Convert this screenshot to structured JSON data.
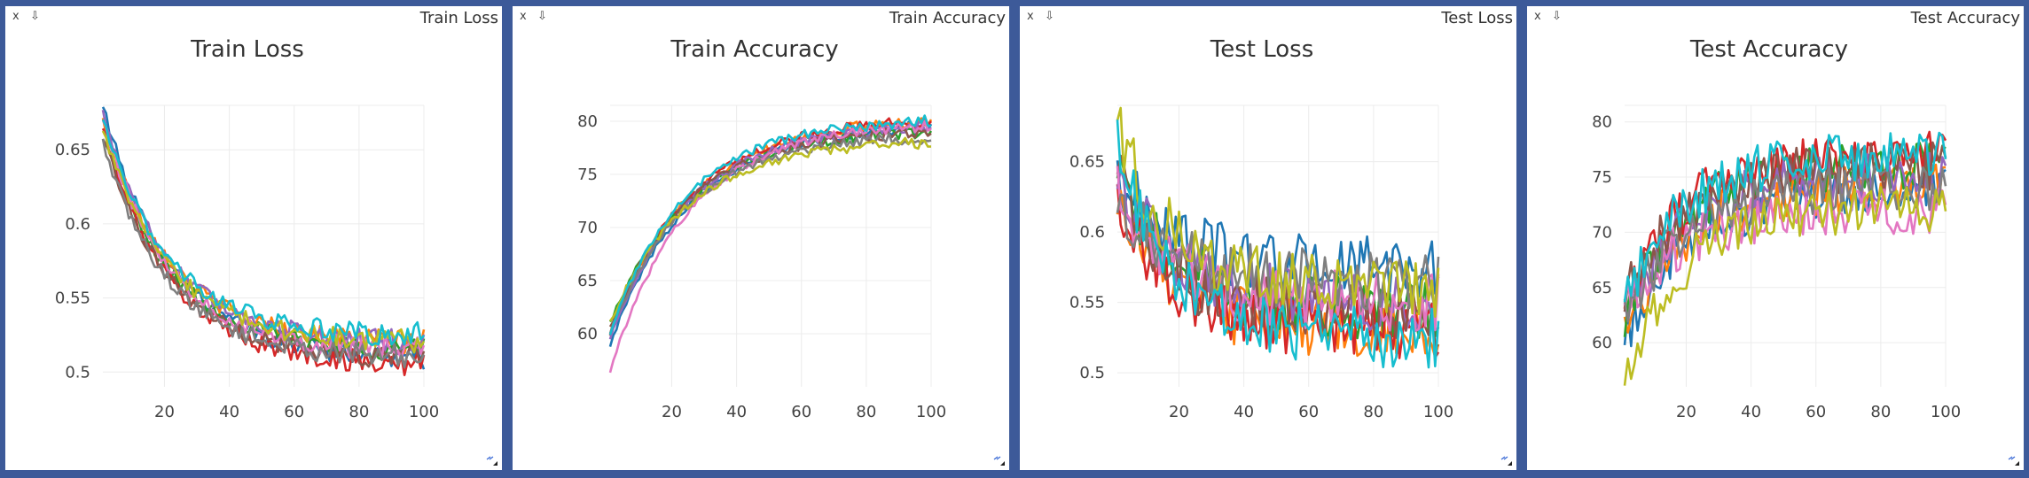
{
  "panes": [
    {
      "window_title": "Train Loss",
      "close_glyph": "x",
      "download_glyph": "⇩"
    },
    {
      "window_title": "Train Accuracy",
      "close_glyph": "x",
      "download_glyph": "⇩"
    },
    {
      "window_title": "Test Loss",
      "close_glyph": "x",
      "download_glyph": "⇩"
    },
    {
      "window_title": "Test Accuracy",
      "close_glyph": "x",
      "download_glyph": "⇩"
    }
  ],
  "colors": {
    "background": "#3d5a99",
    "series": [
      "#1f77b4",
      "#ff7f0e",
      "#2ca02c",
      "#d62728",
      "#9467bd",
      "#8c564b",
      "#e377c2",
      "#7f7f7f",
      "#bcbd22",
      "#17becf"
    ]
  },
  "chart_data": [
    {
      "type": "line",
      "title": "Train Loss",
      "x_range": [
        1,
        100
      ],
      "xticks": [
        "20",
        "40",
        "60",
        "80",
        "100"
      ],
      "ylim": [
        0.49,
        0.68
      ],
      "yticks": [
        "0.5",
        "0.55",
        "0.6",
        "0.65"
      ],
      "grid": true,
      "series_count": 10,
      "start": 0.67,
      "end": 0.515,
      "rate": 0.045,
      "noise": 0.009,
      "starts": [
        0.68,
        0.67,
        0.66,
        0.665,
        0.675,
        0.66,
        0.67,
        0.655,
        0.665,
        0.67
      ],
      "ends": [
        0.51,
        0.52,
        0.515,
        0.505,
        0.52,
        0.51,
        0.515,
        0.51,
        0.52,
        0.525
      ]
    },
    {
      "type": "line",
      "title": "Train Accuracy",
      "x_range": [
        1,
        100
      ],
      "xticks": [
        "20",
        "40",
        "60",
        "80",
        "100"
      ],
      "ylim": [
        55,
        81.5
      ],
      "yticks": [
        "60",
        "65",
        "70",
        "75",
        "80"
      ],
      "grid": true,
      "series_count": 10,
      "starts": [
        59,
        60,
        61,
        60,
        59.5,
        60.5,
        56.5,
        60,
        61,
        60
      ],
      "ends": [
        79.5,
        80,
        79,
        80,
        79.5,
        79,
        79.5,
        78.5,
        78,
        80
      ],
      "rate": 0.05,
      "noise": 0.6
    },
    {
      "type": "line",
      "title": "Test Loss",
      "x_range": [
        1,
        100
      ],
      "xticks": [
        "20",
        "40",
        "60",
        "80",
        "100"
      ],
      "ylim": [
        0.49,
        0.69
      ],
      "yticks": [
        "0.5",
        "0.55",
        "0.6",
        "0.65"
      ],
      "grid": true,
      "series_count": 10,
      "starts": [
        0.64,
        0.63,
        0.64,
        0.62,
        0.645,
        0.64,
        0.63,
        0.625,
        0.675,
        0.66
      ],
      "ends": [
        0.575,
        0.53,
        0.545,
        0.53,
        0.55,
        0.54,
        0.55,
        0.565,
        0.56,
        0.525
      ],
      "rate": 0.06,
      "noise": 0.022
    },
    {
      "type": "line",
      "title": "Test Accuracy",
      "x_range": [
        1,
        100
      ],
      "xticks": [
        "20",
        "40",
        "60",
        "80",
        "100"
      ],
      "ylim": [
        56,
        81.5
      ],
      "yticks": [
        "60",
        "65",
        "70",
        "75",
        "80"
      ],
      "grid": true,
      "series_count": 10,
      "starts": [
        60,
        61,
        62,
        63,
        62,
        64,
        63,
        62,
        57,
        63
      ],
      "ends": [
        73.5,
        74,
        76,
        77,
        75,
        76,
        72,
        74,
        72,
        77
      ],
      "rate": 0.05,
      "noise": 2.2
    }
  ]
}
